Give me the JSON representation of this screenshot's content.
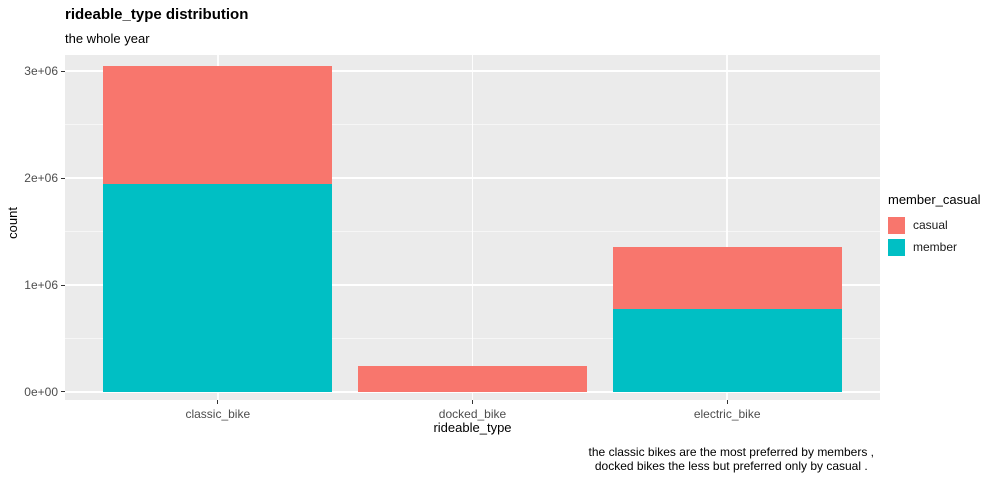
{
  "caption": {
    "line1": "the classic bikes are the most preferred by members ,",
    "line2": "docked bikes the less but preferred only by casual ."
  },
  "chart_data": {
    "type": "bar",
    "stacked": true,
    "title": "rideable_type distribution",
    "subtitle": "the whole year",
    "xlabel": "rideable_type",
    "ylabel": "count",
    "categories": [
      "classic_bike",
      "docked_bike",
      "electric_bike"
    ],
    "series": [
      {
        "name": "casual",
        "color": "#F8766D",
        "values": [
          1110000,
          245000,
          580000
        ]
      },
      {
        "name": "member",
        "color": "#00BFC4",
        "values": [
          1940000,
          0,
          780000
        ]
      }
    ],
    "stack_order": [
      "member",
      "casual"
    ],
    "totals": [
      3050000,
      245000,
      1360000
    ],
    "y_ticks": [
      "0e+00",
      "1e+06",
      "2e+06",
      "3e+06"
    ],
    "y_tick_values": [
      0,
      1000000,
      2000000,
      3000000
    ],
    "y_minor_values": [
      500000,
      1500000,
      2500000
    ],
    "ylim": [
      -75000,
      3150000
    ],
    "bar_width_fraction": 0.9,
    "legend_title": "member_casual",
    "legend_entries": [
      "casual",
      "member"
    ],
    "legend_position": "right",
    "grid": true,
    "panel_bg": "#EBEBEB",
    "grid_color": "#FFFFFF"
  }
}
